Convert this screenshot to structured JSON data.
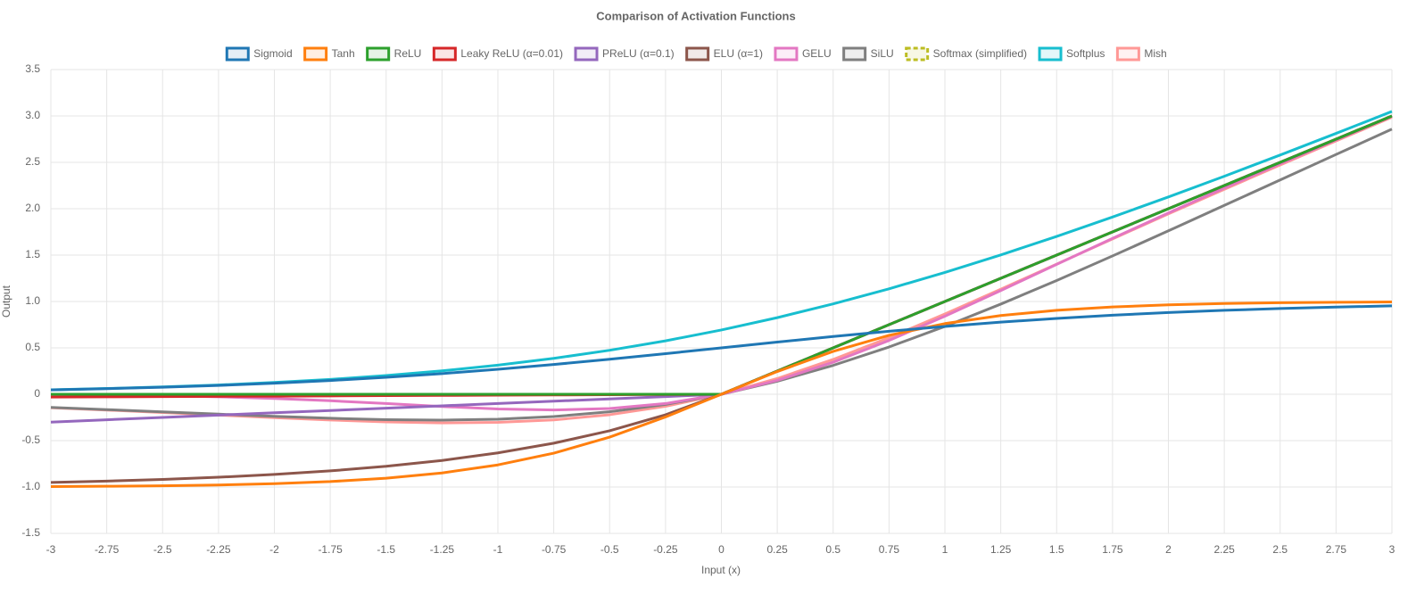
{
  "chart_data": {
    "type": "line",
    "title": "Comparison of Activation Functions",
    "x_label": "Input (x)",
    "y_label": "Output",
    "x": [
      -3,
      -2.75,
      -2.5,
      -2.25,
      -2,
      -1.75,
      -1.5,
      -1.25,
      -1,
      -0.75,
      -0.5,
      -0.25,
      0,
      0.25,
      0.5,
      0.75,
      1,
      1.25,
      1.5,
      1.75,
      2,
      2.25,
      2.5,
      2.75,
      3
    ],
    "xlim": [
      -3,
      3
    ],
    "xticks": [
      -3,
      -2.75,
      -2.5,
      -2.25,
      -2,
      -1.75,
      -1.5,
      -1.25,
      -1,
      -0.75,
      -0.5,
      -0.25,
      0,
      0.25,
      0.5,
      0.75,
      1,
      1.25,
      1.5,
      1.75,
      2,
      2.25,
      2.5,
      2.75,
      3
    ],
    "ylim": [
      -1.5,
      3.5
    ],
    "yticks": [
      -1.5,
      {
        "value": -1,
        "label": "-1.0"
      },
      -0.5,
      0,
      0.5,
      {
        "value": 1,
        "label": "1.0"
      },
      1.5,
      {
        "value": 2,
        "label": "2.0"
      },
      2.5,
      {
        "value": 3,
        "label": "3.0"
      },
      3.5
    ],
    "grid": true,
    "legend": "top",
    "series": [
      {
        "name": "Sigmoid",
        "color": "#1f77b4",
        "values": [
          0.0474,
          0.0601,
          0.0759,
          0.0953,
          0.1192,
          0.148,
          0.1824,
          0.2227,
          0.2689,
          0.3208,
          0.3775,
          0.4378,
          0.5,
          0.5622,
          0.6225,
          0.6792,
          0.7311,
          0.7773,
          0.8176,
          0.852,
          0.8808,
          0.9047,
          0.9241,
          0.9399,
          0.9526
        ]
      },
      {
        "name": "Tanh",
        "color": "#ff7f0e",
        "values": [
          -0.9951,
          -0.9919,
          -0.9866,
          -0.978,
          -0.964,
          -0.9414,
          -0.9051,
          -0.8483,
          -0.7616,
          -0.6351,
          -0.4621,
          -0.2449,
          0,
          0.2449,
          0.4621,
          0.6351,
          0.7616,
          0.8483,
          0.9051,
          0.9414,
          0.964,
          0.978,
          0.9866,
          0.9919,
          0.9951
        ]
      },
      {
        "name": "ReLU",
        "color": "#2ca02c",
        "values": [
          0,
          0,
          0,
          0,
          0,
          0,
          0,
          0,
          0,
          0,
          0,
          0,
          0,
          0.25,
          0.5,
          0.75,
          1,
          1.25,
          1.5,
          1.75,
          2,
          2.25,
          2.5,
          2.75,
          3
        ]
      },
      {
        "name": "Leaky ReLU (α=0.01)",
        "color": "#d62728",
        "values": [
          -0.03,
          -0.0275,
          -0.025,
          -0.0225,
          -0.02,
          -0.0175,
          -0.015,
          -0.0125,
          -0.01,
          -0.0075,
          -0.005,
          -0.0025,
          0,
          0.25,
          0.5,
          0.75,
          1,
          1.25,
          1.5,
          1.75,
          2,
          2.25,
          2.5,
          2.75,
          3
        ]
      },
      {
        "name": "PReLU (α=0.1)",
        "color": "#9467bd",
        "values": [
          -0.3,
          -0.275,
          -0.25,
          -0.225,
          -0.2,
          -0.175,
          -0.15,
          -0.125,
          -0.1,
          -0.075,
          -0.05,
          -0.025,
          0,
          0.25,
          0.5,
          0.75,
          1,
          1.25,
          1.5,
          1.75,
          2,
          2.25,
          2.5,
          2.75,
          3
        ]
      },
      {
        "name": "ELU (α=1)",
        "color": "#8c564b",
        "values": [
          -0.9502,
          -0.9361,
          -0.9179,
          -0.8946,
          -0.8647,
          -0.8262,
          -0.7769,
          -0.7135,
          -0.6321,
          -0.5276,
          -0.3935,
          -0.2212,
          0,
          0.25,
          0.5,
          0.75,
          1,
          1.25,
          1.5,
          1.75,
          2,
          2.25,
          2.5,
          2.75,
          3
        ]
      },
      {
        "name": "GELU",
        "color": "#e377c2",
        "values": [
          -0.004,
          -0.0082,
          -0.0155,
          -0.0275,
          -0.0455,
          -0.0701,
          -0.1002,
          -0.1321,
          -0.1587,
          -0.17,
          -0.1543,
          -0.1003,
          0,
          0.1497,
          0.3457,
          0.58,
          0.8413,
          1.1179,
          1.3998,
          1.6799,
          1.9545,
          2.2225,
          2.4845,
          2.7418,
          2.996
        ]
      },
      {
        "name": "SiLU",
        "color": "#7f7f7f",
        "values": [
          -0.1423,
          -0.1653,
          -0.1897,
          -0.2144,
          -0.2384,
          -0.259,
          -0.2736,
          -0.2784,
          -0.2689,
          -0.2406,
          -0.1888,
          -0.1095,
          0,
          0.1405,
          0.3112,
          0.5094,
          0.7311,
          0.9716,
          1.2264,
          1.491,
          1.7616,
          2.0356,
          2.3103,
          2.5847,
          2.8577
        ]
      },
      {
        "name": "Softmax (simplified)",
        "color": "#bcbd22",
        "dashed": true,
        "values": [
          null,
          null,
          null,
          null,
          null,
          null,
          null,
          null,
          null,
          null,
          null,
          null,
          null,
          null,
          null,
          null,
          null,
          null,
          null,
          null,
          null,
          null,
          null,
          null,
          null
        ]
      },
      {
        "name": "Softplus",
        "color": "#17becf",
        "values": [
          0.0486,
          0.062,
          0.0789,
          0.1,
          0.1269,
          0.1602,
          0.2014,
          0.2519,
          0.3133,
          0.3868,
          0.4741,
          0.5759,
          0.6931,
          0.8259,
          0.9741,
          1.1368,
          1.3133,
          1.5019,
          1.7014,
          1.9102,
          2.1269,
          2.35,
          2.5789,
          2.812,
          3.0486
        ]
      },
      {
        "name": "Mish",
        "color": "#ff9896",
        "values": [
          -0.1457,
          -0.1703,
          -0.1968,
          -0.2243,
          -0.2525,
          -0.2779,
          -0.2981,
          -0.3084,
          -0.3034,
          -0.2765,
          -0.2207,
          -0.1299,
          0,
          0.1696,
          0.3752,
          0.61,
          0.8651,
          1.1318,
          1.4033,
          1.6748,
          1.9441,
          2.2095,
          2.4713,
          2.7302,
          2.9865
        ]
      }
    ]
  }
}
